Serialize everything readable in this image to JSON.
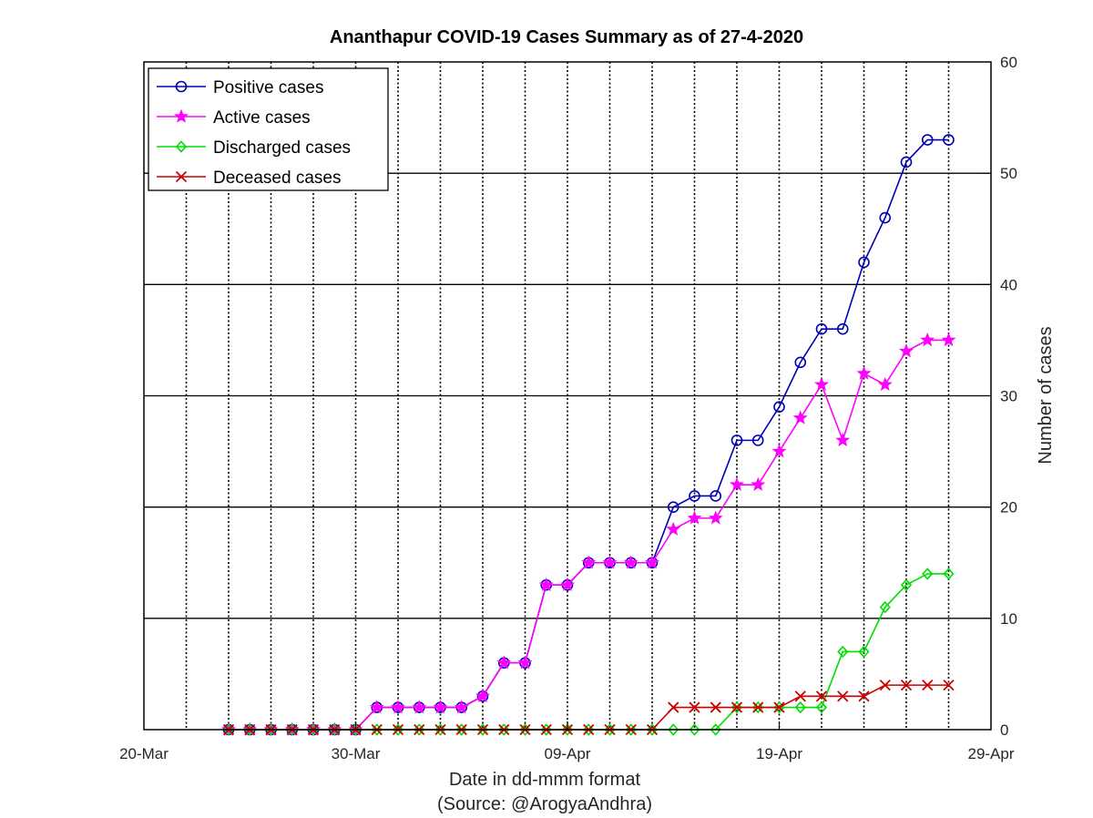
{
  "chart_data": {
    "type": "line",
    "title": "Ananthapur COVID-19 Cases Summary as of 27-4-2020",
    "xlabel": "Date in dd-mmm format",
    "xlabel_source": "(Source: @ArogyaAndhra)",
    "ylabel": "Number of cases",
    "x_tick_labels": [
      "20-Mar",
      "30-Mar",
      "09-Apr",
      "19-Apr",
      "29-Apr"
    ],
    "x_tick_dates": [
      "2020-03-20",
      "2020-03-30",
      "2020-04-09",
      "2020-04-19",
      "2020-04-29"
    ],
    "xlim": [
      "2020-03-20",
      "2020-04-29"
    ],
    "y_tick_labels": [
      "0",
      "10",
      "20",
      "30",
      "40",
      "50",
      "60"
    ],
    "y_ticks": [
      0,
      10,
      20,
      30,
      40,
      50,
      60
    ],
    "ylim": [
      0,
      60
    ],
    "y_axis_side": "right",
    "grid": "on",
    "legend_position": "top-left",
    "dates": [
      "2020-03-24",
      "2020-03-25",
      "2020-03-26",
      "2020-03-27",
      "2020-03-28",
      "2020-03-29",
      "2020-03-30",
      "2020-03-31",
      "2020-04-01",
      "2020-04-02",
      "2020-04-03",
      "2020-04-04",
      "2020-04-05",
      "2020-04-06",
      "2020-04-07",
      "2020-04-08",
      "2020-04-09",
      "2020-04-10",
      "2020-04-11",
      "2020-04-12",
      "2020-04-13",
      "2020-04-14",
      "2020-04-15",
      "2020-04-16",
      "2020-04-17",
      "2020-04-18",
      "2020-04-19",
      "2020-04-20",
      "2020-04-21",
      "2020-04-22",
      "2020-04-23",
      "2020-04-24",
      "2020-04-25",
      "2020-04-26",
      "2020-04-27"
    ],
    "series": [
      {
        "name": "Positive cases",
        "color": "#0000b4",
        "marker": "circle",
        "values": [
          0,
          0,
          0,
          0,
          0,
          0,
          0,
          2,
          2,
          2,
          2,
          2,
          3,
          6,
          6,
          13,
          13,
          15,
          15,
          15,
          15,
          20,
          21,
          21,
          26,
          26,
          29,
          33,
          36,
          36,
          42,
          46,
          51,
          53,
          53
        ]
      },
      {
        "name": "Active cases",
        "color": "#ff00ff",
        "marker": "star",
        "values": [
          0,
          0,
          0,
          0,
          0,
          0,
          0,
          2,
          2,
          2,
          2,
          2,
          3,
          6,
          6,
          13,
          13,
          15,
          15,
          15,
          15,
          18,
          19,
          19,
          22,
          22,
          25,
          28,
          31,
          26,
          32,
          31,
          34,
          35,
          35
        ]
      },
      {
        "name": "Discharged cases",
        "color": "#00dd00",
        "marker": "diamond",
        "values": [
          0,
          0,
          0,
          0,
          0,
          0,
          0,
          0,
          0,
          0,
          0,
          0,
          0,
          0,
          0,
          0,
          0,
          0,
          0,
          0,
          0,
          0,
          0,
          0,
          2,
          2,
          2,
          2,
          2,
          7,
          7,
          11,
          13,
          14,
          14
        ]
      },
      {
        "name": "Deceased cases",
        "color": "#cc0000",
        "marker": "x",
        "values": [
          0,
          0,
          0,
          0,
          0,
          0,
          0,
          0,
          0,
          0,
          0,
          0,
          0,
          0,
          0,
          0,
          0,
          0,
          0,
          0,
          0,
          2,
          2,
          2,
          2,
          2,
          2,
          3,
          3,
          3,
          3,
          4,
          4,
          4,
          4
        ]
      }
    ]
  }
}
